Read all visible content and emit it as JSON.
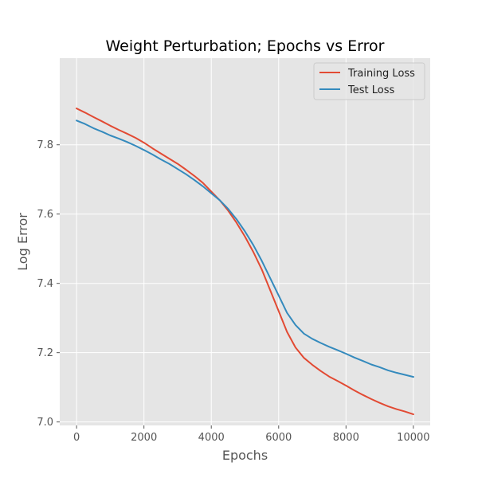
{
  "chart_data": {
    "type": "line",
    "title": "Weight Perturbation; Epochs vs Error",
    "xlabel": "Epochs",
    "ylabel": "Log Error",
    "xlim": [
      -500,
      10500
    ],
    "ylim": [
      6.99,
      8.05
    ],
    "xticks": [
      0,
      2000,
      4000,
      6000,
      8000,
      10000
    ],
    "yticks": [
      7.0,
      7.2,
      7.4,
      7.6,
      7.8
    ],
    "grid": true,
    "legend_position": "top-right",
    "series": [
      {
        "name": "Training Loss",
        "color": "#E24A33",
        "x": [
          0,
          250,
          500,
          750,
          1000,
          1250,
          1500,
          1750,
          2000,
          2250,
          2500,
          2750,
          3000,
          3250,
          3500,
          3750,
          4000,
          4250,
          4500,
          4750,
          5000,
          5250,
          5500,
          5750,
          6000,
          6250,
          6500,
          6750,
          7000,
          7250,
          7500,
          7750,
          8000,
          8250,
          8500,
          8750,
          9000,
          9250,
          9500,
          9750,
          10000
        ],
        "values": [
          7.905,
          7.893,
          7.88,
          7.868,
          7.855,
          7.843,
          7.832,
          7.82,
          7.806,
          7.79,
          7.775,
          7.76,
          7.745,
          7.728,
          7.71,
          7.69,
          7.665,
          7.64,
          7.61,
          7.575,
          7.535,
          7.49,
          7.44,
          7.38,
          7.32,
          7.26,
          7.215,
          7.185,
          7.165,
          7.147,
          7.131,
          7.118,
          7.105,
          7.091,
          7.078,
          7.066,
          7.055,
          7.045,
          7.037,
          7.03,
          7.022
        ]
      },
      {
        "name": "Test Loss",
        "color": "#348ABD",
        "x": [
          0,
          250,
          500,
          750,
          1000,
          1250,
          1500,
          1750,
          2000,
          2250,
          2500,
          2750,
          3000,
          3250,
          3500,
          3750,
          4000,
          4250,
          4500,
          4750,
          5000,
          5250,
          5500,
          5750,
          6000,
          6250,
          6500,
          6750,
          7000,
          7250,
          7500,
          7750,
          8000,
          8250,
          8500,
          8750,
          9000,
          9250,
          9500,
          9750,
          10000
        ],
        "values": [
          7.87,
          7.86,
          7.848,
          7.838,
          7.827,
          7.818,
          7.808,
          7.797,
          7.785,
          7.772,
          7.758,
          7.745,
          7.73,
          7.715,
          7.698,
          7.68,
          7.66,
          7.64,
          7.615,
          7.585,
          7.55,
          7.51,
          7.465,
          7.415,
          7.365,
          7.315,
          7.28,
          7.255,
          7.24,
          7.228,
          7.217,
          7.207,
          7.197,
          7.186,
          7.176,
          7.166,
          7.158,
          7.149,
          7.142,
          7.136,
          7.13
        ]
      }
    ]
  }
}
